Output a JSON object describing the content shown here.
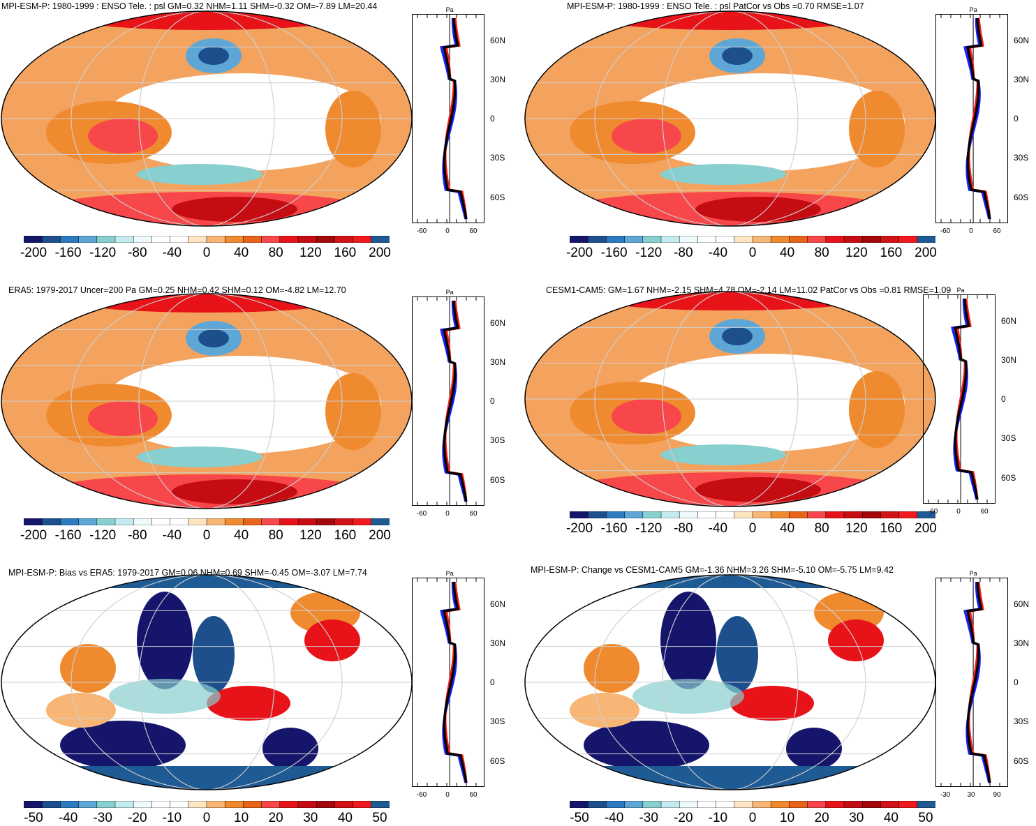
{
  "panels": [
    {
      "title": "MPI-ESM-P: 1980-1999 : ENSO Tele. : psl GM=0.32 NHM=1.11 SHM=-0.32 OM=-7.89 LM=20.44",
      "cb_labels": [
        "-200",
        "-160",
        "-120",
        "-80",
        "-40",
        "0",
        "40",
        "80",
        "120",
        "160",
        "200"
      ],
      "zonal_unit": "Pa",
      "zonal_x_ticks": [
        "-60",
        "0",
        "60"
      ],
      "lat_labels": [
        "60N",
        "30N",
        "0",
        "30S",
        "60S"
      ]
    },
    {
      "title": "MPI-ESM-P: 1980-1999 : ENSO Tele. : psl PatCor vs Obs =0.70 RMSE=1.07",
      "cb_labels": [
        "-200",
        "-160",
        "-120",
        "-80",
        "-40",
        "0",
        "40",
        "80",
        "120",
        "160",
        "200"
      ],
      "zonal_unit": "Pa",
      "zonal_x_ticks": [
        "-60",
        "0",
        "60"
      ],
      "lat_labels": [
        "60N",
        "30N",
        "0",
        "30S",
        "60S"
      ]
    },
    {
      "title": "ERA5: 1979-2017 Uncer=200 Pa GM=0.25 NHM=0.42 SHM=0.12 OM=-4.82 LM=12.70",
      "cb_labels": [
        "-200",
        "-160",
        "-120",
        "-80",
        "-40",
        "0",
        "40",
        "80",
        "120",
        "160",
        "200"
      ],
      "zonal_unit": "Pa",
      "zonal_x_ticks": [
        "-60",
        "0",
        "60"
      ],
      "lat_labels": [
        "60N",
        "30N",
        "0",
        "30S",
        "60S"
      ]
    },
    {
      "title": "CESM1-CAM5: GM=1.67 NHM=-2.15 SHM=4.78 OM=-2.14 LM=11.02 PatCor vs Obs =0.81 RMSE=1.09",
      "cb_labels": [
        "-200",
        "-160",
        "-120",
        "-80",
        "-40",
        "0",
        "40",
        "80",
        "120",
        "160",
        "200"
      ],
      "zonal_unit": "Pa",
      "zonal_x_ticks": [
        "-60",
        "0",
        "60"
      ],
      "lat_labels": [
        "60N",
        "30N",
        "0",
        "30S",
        "60S"
      ]
    },
    {
      "title": "MPI-ESM-P: Bias vs ERA5: 1979-2017 GM=0.06 NHM=0.69 SHM=-0.45 OM=-3.07 LM=7.74",
      "cb_labels": [
        "-50",
        "-40",
        "-30",
        "-20",
        "-10",
        "0",
        "10",
        "20",
        "30",
        "40",
        "50"
      ],
      "zonal_unit": "Pa",
      "zonal_x_ticks": [
        "-60",
        "0",
        "60"
      ],
      "lat_labels": [
        "60N",
        "30N",
        "0",
        "30S",
        "60S"
      ]
    },
    {
      "title": "MPI-ESM-P: Change vs CESM1-CAM5 GM=-1.36 NHM=3.26 SHM=-5.10 OM=-5.75 LM=9.42",
      "cb_labels": [
        "-50",
        "-40",
        "-30",
        "-20",
        "-10",
        "0",
        "10",
        "20",
        "30",
        "40",
        "50"
      ],
      "zonal_unit": "Pa",
      "zonal_x_ticks": [
        "-30",
        "30",
        "90"
      ],
      "lat_labels": [
        "60N",
        "30N",
        "0",
        "30S",
        "60S"
      ]
    }
  ],
  "colors": {
    "palette": [
      "#14156b",
      "#1c4f8c",
      "#2c7bc0",
      "#5da6d6",
      "#88cfcf",
      "#c4ecef",
      "#eefafc",
      "#ffffff",
      "#ffffff",
      "#fde4c2",
      "#f7b675",
      "#ef8a2f",
      "#e8641b",
      "#f7474a",
      "#e81318",
      "#c50c12",
      "#a3070c",
      "#d11217",
      "#f0191e",
      "#1e5a93"
    ],
    "zonal_model": "#ff1a1a",
    "zonal_obs": "#1e1eff",
    "zonal_mean": "#000000"
  }
}
